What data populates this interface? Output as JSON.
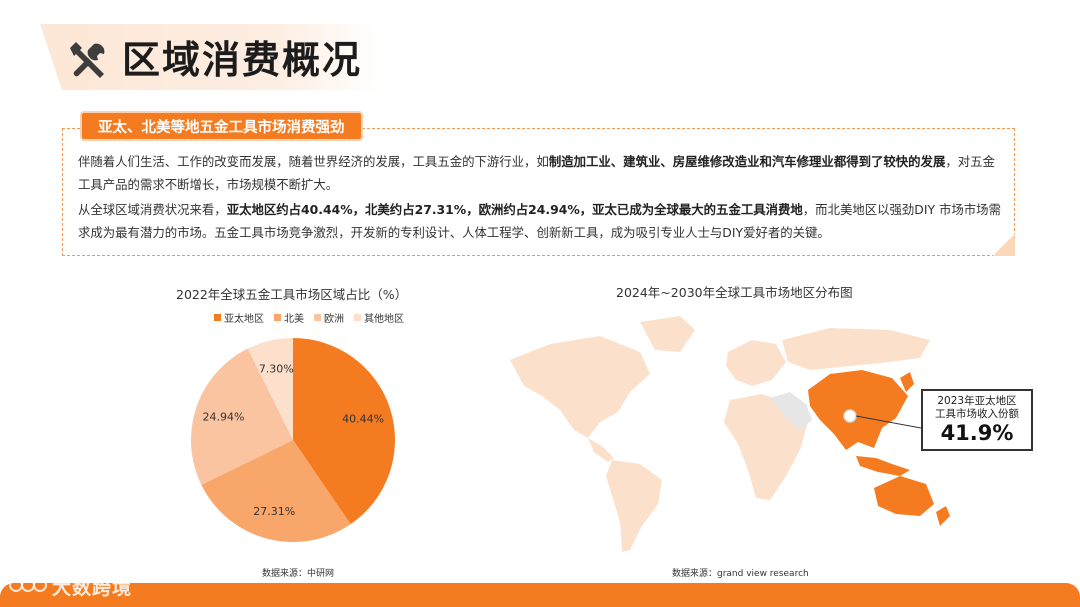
{
  "header": {
    "title": "区域消费概况",
    "icon": "tools-icon"
  },
  "section": {
    "badge": "亚太、北美等地五金工具市场消费强劲",
    "para1": [
      {
        "t": "伴随着人们生活、工作的改变而发展，随着世界经济的发展，工具五金的下游行业，如",
        "b": false
      },
      {
        "t": "制造加工业、建筑业、房屋维修改造业和汽车修理业都得到了较快的发展",
        "b": true
      },
      {
        "t": "，对五金工具产品的需求不断增长，市场规模不断扩大。",
        "b": false
      }
    ],
    "para2": [
      {
        "t": "从全球区域消费状况来看，",
        "b": false
      },
      {
        "t": "亚太地区约占40.44%，北美约占27.31%，欧洲约占24.94%，亚太已成为全球最大的五金工具消费地",
        "b": true
      },
      {
        "t": "，而北美地区以强劲DIY 市场市场需求成为最有潜力的市场。五金工具市场竞争激烈，开发新的专利设计、人体工程学、创新新工具，成为吸引专业人士与DIY爱好者的关键。",
        "b": false
      }
    ]
  },
  "chart_data": [
    {
      "type": "pie",
      "title": "2022年全球五金工具市场区域占比（%）",
      "categories": [
        "亚太地区",
        "北美",
        "欧洲",
        "其他地区"
      ],
      "values": [
        40.44,
        27.31,
        24.94,
        7.3
      ],
      "labels": [
        "40.44%",
        "27.31%",
        "24.94%",
        "7.30%"
      ],
      "colors": [
        "#f47b20",
        "#f9a66a",
        "#fbc4a0",
        "#fde0cc"
      ],
      "legend": "top"
    },
    {
      "type": "map",
      "title": "2024年~2030年全球工具市场地区分布图",
      "highlight_region": "亚太地区",
      "callout": {
        "line1": "2023年亚太地区",
        "line2": "工具市场收入份额",
        "value": "41.9%"
      },
      "colors": {
        "highlight": "#f47b20",
        "land": "#fbe1cc",
        "neutral": "#e6e6e6"
      }
    }
  ],
  "sources": {
    "pie": "数据来源：中研网",
    "map": "数据来源：grand view research"
  },
  "footer": {
    "watermark": "大数跨境",
    "color": "#f47b20"
  }
}
